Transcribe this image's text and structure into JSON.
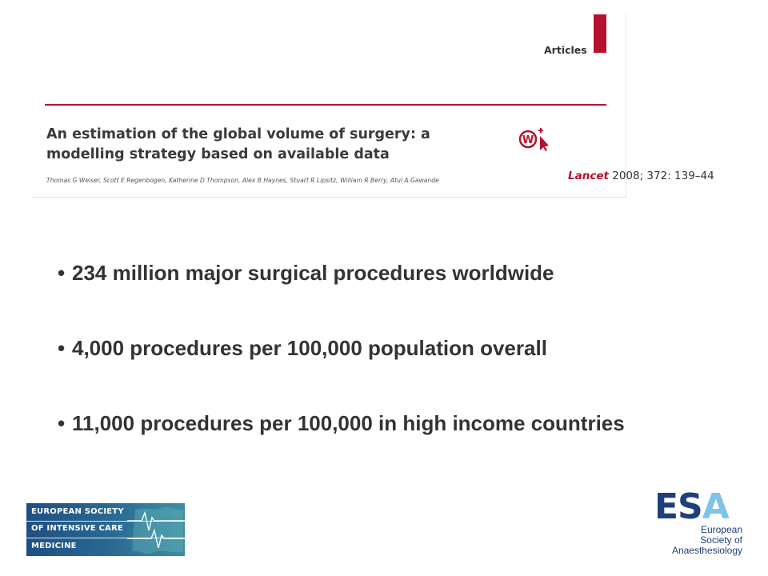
{
  "article": {
    "section_label": "Articles",
    "title": "An estimation of the global volume of surgery: a modelling strategy based on available data",
    "authors": "Thomas G Weiser, Scott E Regenbogen, Katherine D Thompson, Alex B Haynes, Stuart R Lipsitz, William R Berry, Atul A Gawande",
    "web_icon_label": "W",
    "citation": {
      "journal": "Lancet",
      "details": " 2008; 372: 139–44"
    }
  },
  "bullets": [
    {
      "marker": "•",
      "text": "234 million major surgical procedures worldwide"
    },
    {
      "marker": "•",
      "text": "4,000 procedures per 100,000 population overall"
    },
    {
      "marker": "•",
      "text": "11,000 procedures per 100,000 in high income countries"
    }
  ],
  "logos": {
    "esicm": {
      "lines": [
        "EUROPEAN SOCIETY",
        "OF INTENSIVE CARE",
        "MEDICINE"
      ]
    },
    "esa": {
      "mark_es": "ES",
      "mark_a": "A",
      "lines": [
        "European",
        "Society of",
        "Anaesthesiology"
      ]
    }
  },
  "colors": {
    "lancet_red": "#b5122e",
    "text_dark": "#333333",
    "esicm_blue": "#1f4f83",
    "esa_navy": "#1e3f7a",
    "esa_light_blue": "#7ec3e8"
  }
}
